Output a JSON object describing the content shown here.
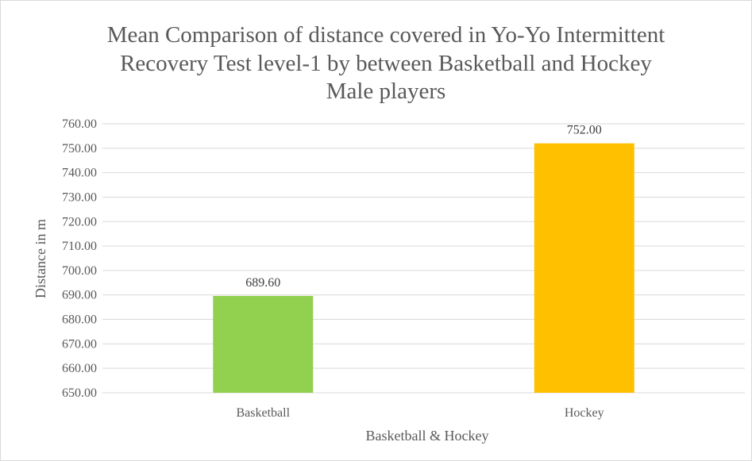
{
  "chart_data": {
    "type": "bar",
    "title_lines": [
      "Mean Comparison  of distance  covered  in Yo-Yo Intermittent",
      "Recovery  Test level-1   by between Basketball  and Hockey",
      "Male players"
    ],
    "categories": [
      "Basketball",
      "Hockey"
    ],
    "values": [
      689.6,
      752.0
    ],
    "data_labels": [
      "689.60",
      "752.00"
    ],
    "colors": [
      "#92d050",
      "#ffc000"
    ],
    "xlabel": "Basketball & Hockey",
    "ylabel": "Distance in m",
    "ylim": [
      650,
      760
    ],
    "y_ticks": [
      "650.00",
      "660.00",
      "670.00",
      "680.00",
      "690.00",
      "700.00",
      "710.00",
      "720.00",
      "730.00",
      "740.00",
      "750.00",
      "760.00"
    ],
    "grid": true,
    "gridline_color": "#d9d9d9"
  }
}
